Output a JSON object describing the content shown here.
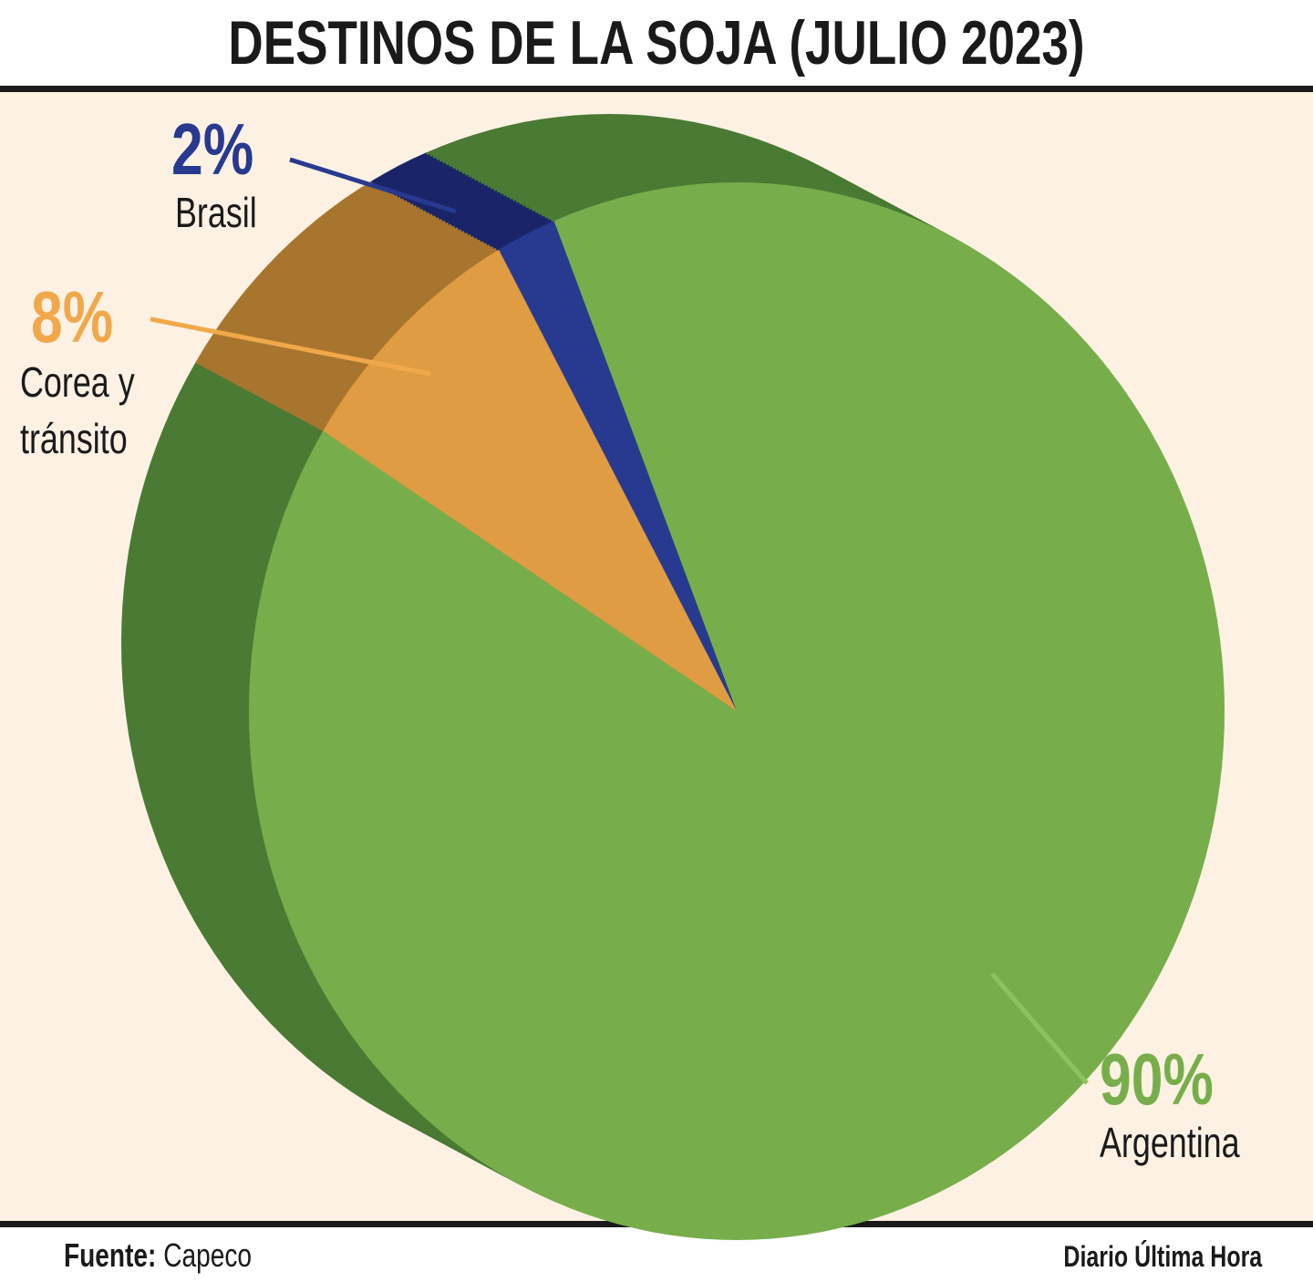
{
  "chart_data": {
    "type": "pie",
    "title": "DESTINOS DE LA SOJA (JULIO 2023)",
    "slices": [
      {
        "label": "Brasil",
        "value": 2,
        "display": "2%",
        "color": "#283a8f",
        "side_color": "#1a2468"
      },
      {
        "label": "Corea y tránsito",
        "label_lines": [
          "Corea y",
          "tránsito"
        ],
        "value": 8,
        "display": "8%",
        "color": "#e09c42",
        "side_color": "#a8752e"
      },
      {
        "label": "Argentina",
        "value": 90,
        "display": "90%",
        "color": "#77ae4b",
        "side_color": "#4a7a34"
      }
    ],
    "style": "3d-pie"
  },
  "footer": {
    "source_label": "Fuente:",
    "source": "Capeco",
    "brand": "Diario Última Hora"
  },
  "colors": {
    "background": "#fdf1e3",
    "rule": "#1a1a1a"
  }
}
